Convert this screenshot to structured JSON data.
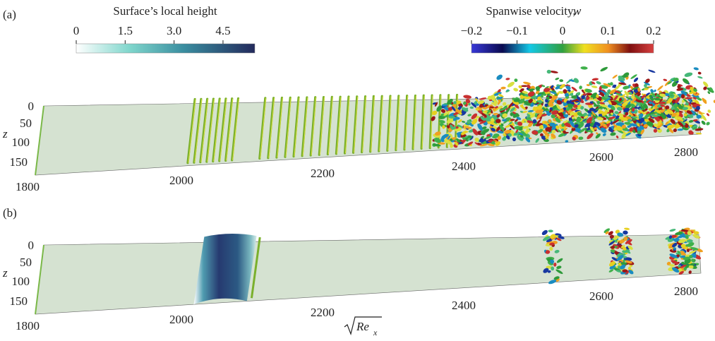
{
  "colorbars": [
    {
      "title": "Surface’s local height",
      "ticks": [
        "0",
        "1.5",
        "3.0",
        "4.5"
      ]
    },
    {
      "title": "Spanwise velocity,",
      "variable": "w",
      "ticks": [
        "−0.2",
        "−0.1",
        "0",
        "0.1",
        "0.2"
      ]
    }
  ],
  "panels": [
    {
      "label": "(a)",
      "xticks": [
        "1800",
        "2000",
        "2200",
        "2400",
        "2600",
        "2800"
      ],
      "zlabel": "z",
      "zticks": [
        "0",
        "50",
        "100",
        "150"
      ]
    },
    {
      "label": "(b)",
      "xticks": [
        "1800",
        "2000",
        "2200",
        "2400",
        "2600",
        "2800"
      ],
      "zlabel": "z",
      "zticks": [
        "0",
        "50",
        "100",
        "150"
      ]
    }
  ],
  "xlabel": {
    "radicand": "Re",
    "subscript": "x"
  }
}
